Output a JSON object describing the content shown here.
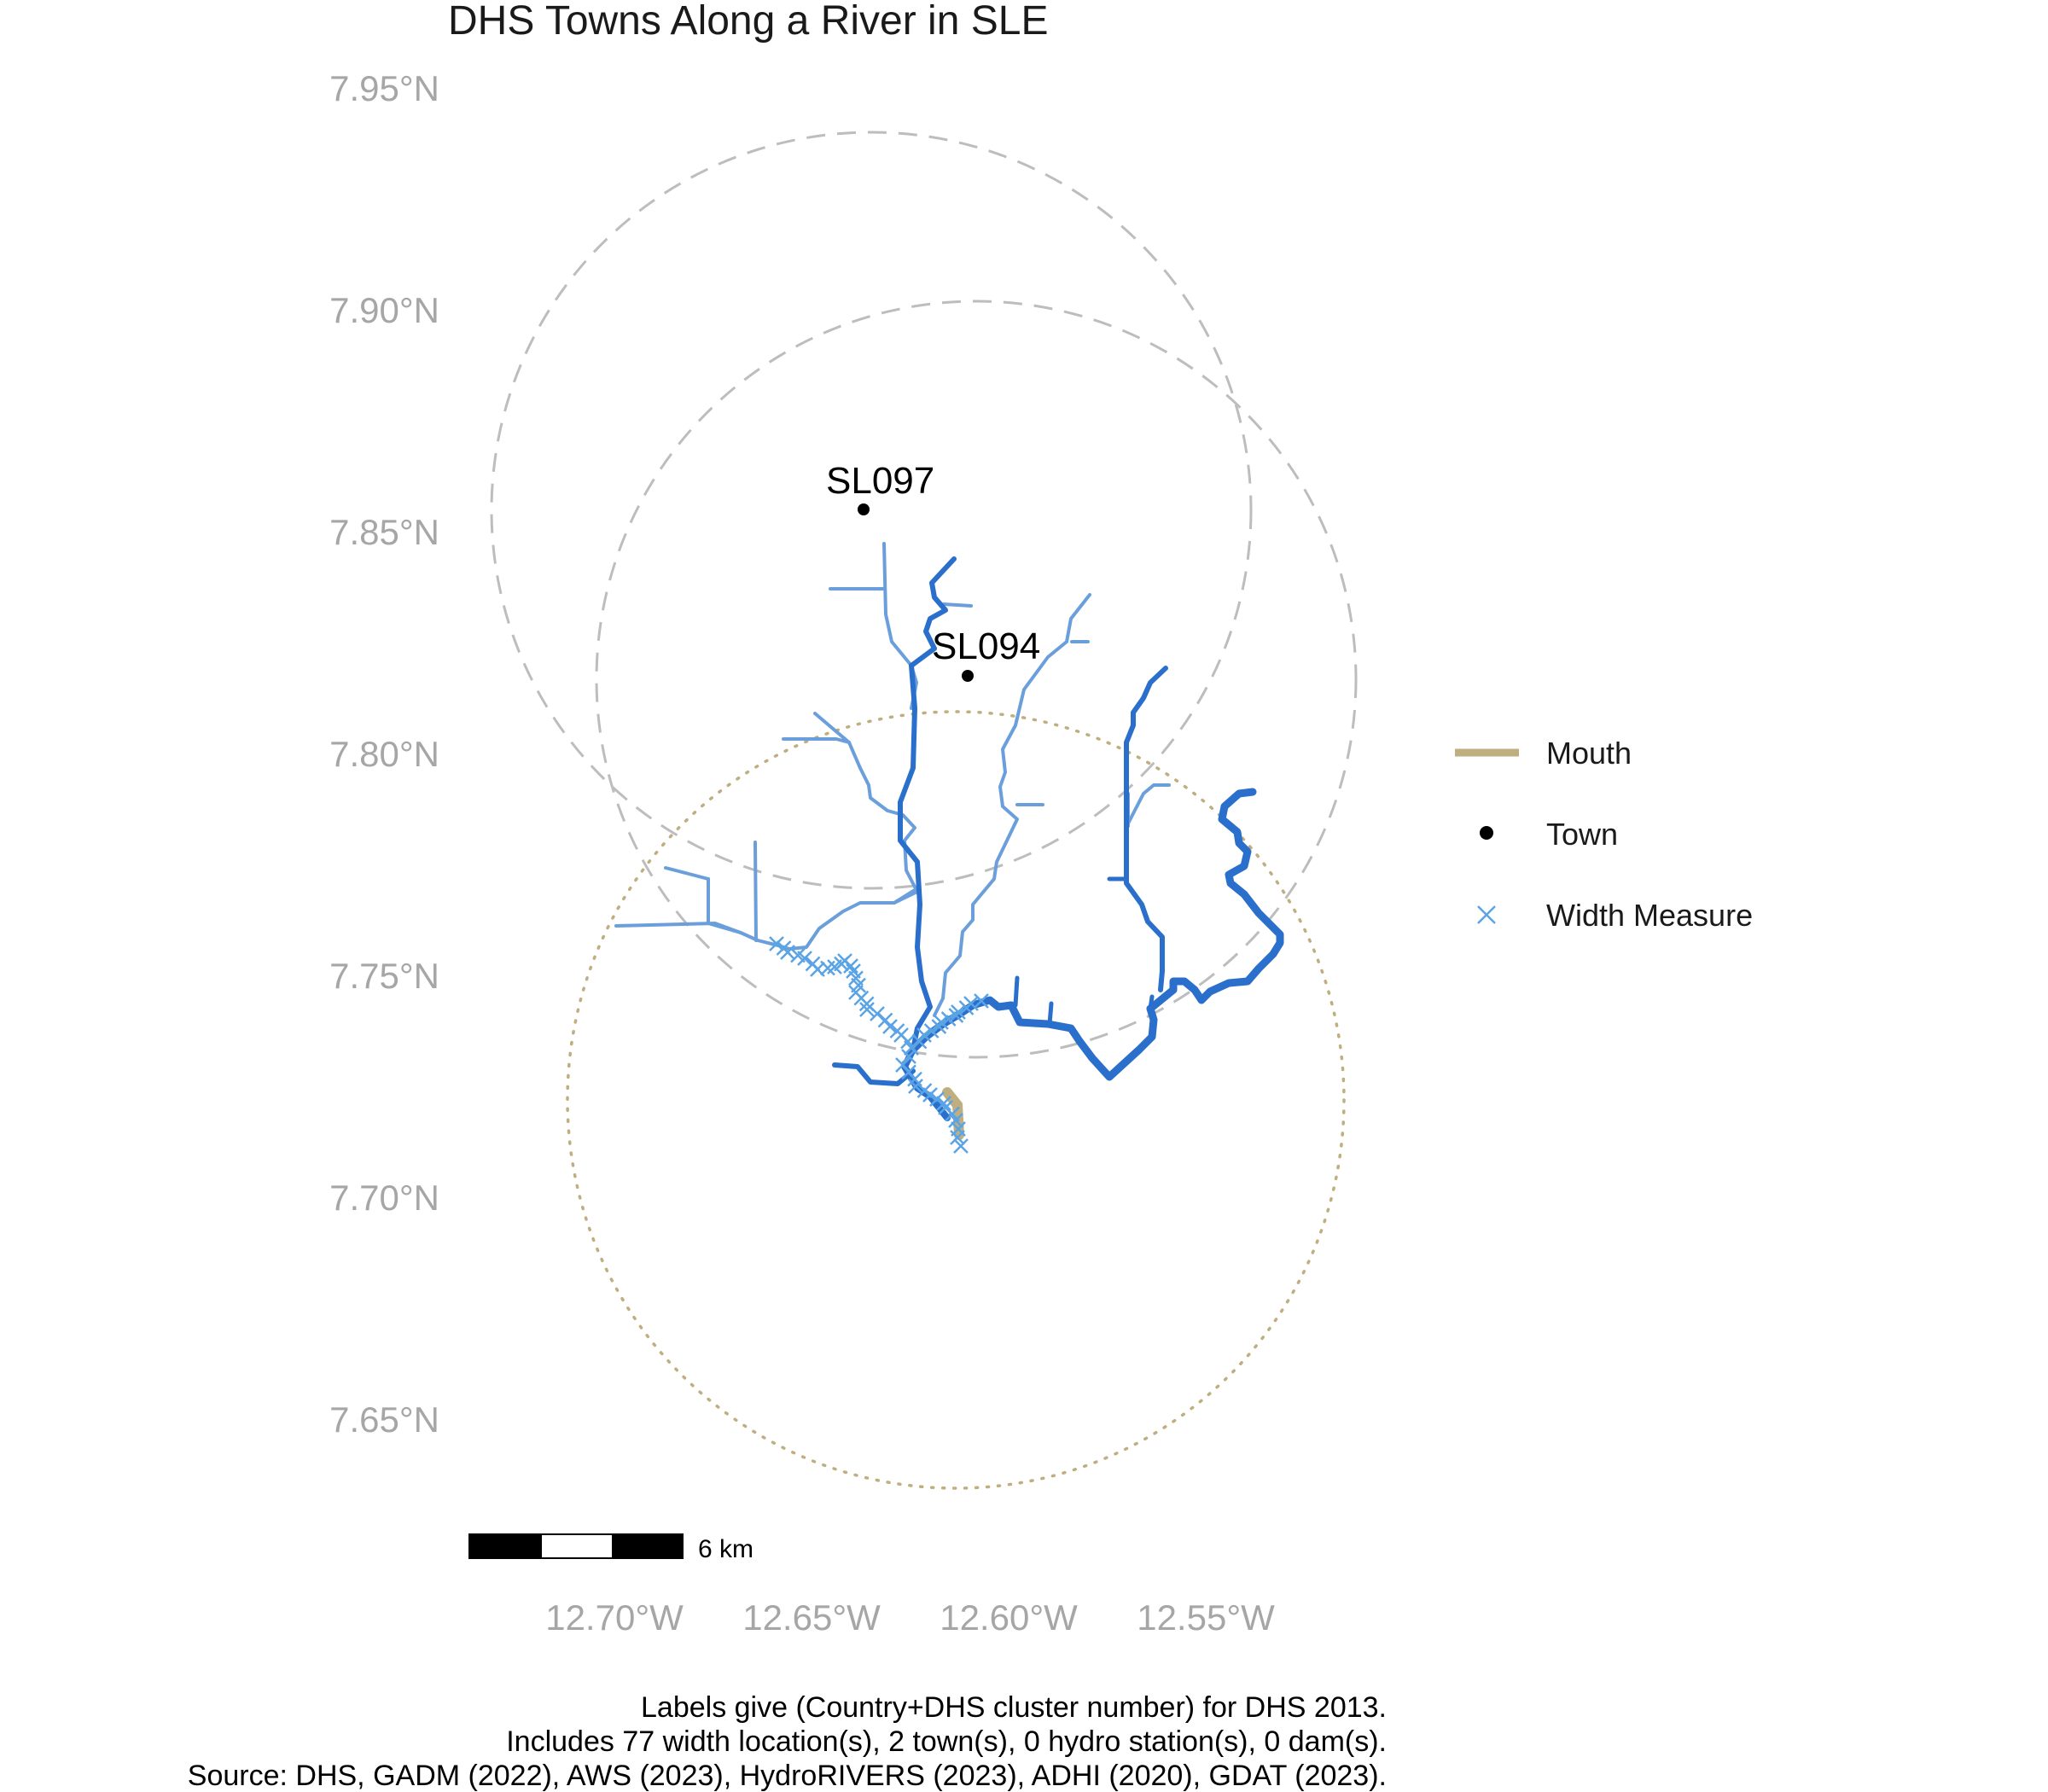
{
  "map": {
    "title": "DHS Towns Along a River in SLE",
    "lat_ticks": [
      "7.95°N",
      "7.90°N",
      "7.85°N",
      "7.80°N",
      "7.75°N",
      "7.70°N",
      "7.65°N"
    ],
    "lon_ticks": [
      "12.70°W",
      "12.65°W",
      "12.60°W",
      "12.55°W"
    ],
    "towns": [
      {
        "label": "SL097"
      },
      {
        "label": "SL094"
      }
    ],
    "legend": [
      {
        "label": "Mouth",
        "color": "#bfae7f",
        "icon": "line-swatch-icon"
      },
      {
        "label": "Town",
        "color": "#000000",
        "icon": "dot-icon"
      },
      {
        "label": "Width Measure",
        "color": "#5aa4e6",
        "icon": "cross-icon"
      }
    ],
    "scale_bar": {
      "label": "6 km"
    },
    "captions": [
      "Labels give (Country+DHS cluster number) for DHS 2013.",
      "Includes 77 width location(s), 2 town(s), 0 hydro station(s), 0 dam(s).",
      "Source: DHS, GADM (2022), AWS (2023), HydroRIVERS (2023), ADHI (2020), GDAT (2023)."
    ],
    "colors": {
      "river_main": "#2a6fcb",
      "river_minor": "#6a9fdc",
      "circle_town": "#bdbdbd",
      "circle_mouth": "#bfae7f",
      "tick_text": "#a6a6a6"
    }
  }
}
